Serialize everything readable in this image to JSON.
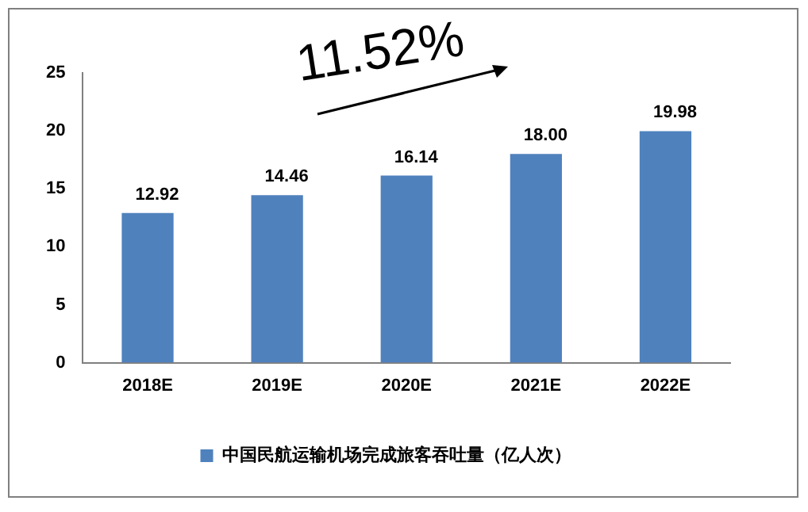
{
  "chart_data": {
    "type": "bar",
    "categories": [
      "2018E",
      "2019E",
      "2020E",
      "2021E",
      "2022E"
    ],
    "series": [
      {
        "name": "中国民航运输机场完成旅客吞吐量（亿人次）",
        "color": "#4f81bd",
        "values": [
          12.92,
          14.46,
          16.14,
          18.0,
          19.98
        ]
      }
    ],
    "value_labels": [
      "12.92",
      "14.46",
      "16.14",
      "18.00",
      "19.98"
    ],
    "ylim": [
      0,
      25
    ],
    "yticks": [
      0,
      5,
      10,
      15,
      20,
      25
    ],
    "grid": false,
    "legend": "bottom",
    "annotations": [
      "11.52%"
    ]
  }
}
